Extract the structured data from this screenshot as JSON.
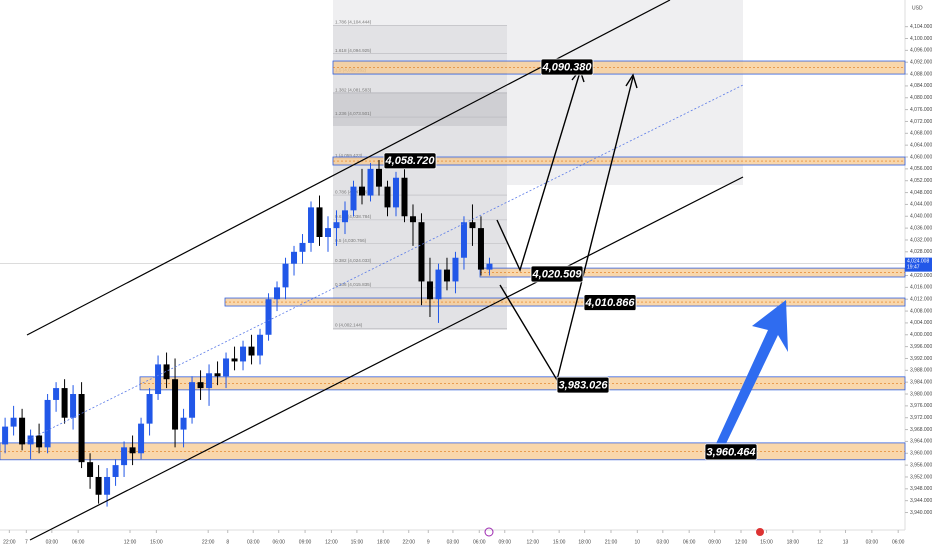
{
  "chart_data": {
    "type": "candlestick",
    "currency": "USD",
    "up_color": "#2157e8",
    "down_color": "#000000",
    "ylim": [
      3934.1,
      4113.0
    ],
    "xlim": [
      -0.6,
      105.9
    ],
    "candles": [
      [
        3963,
        3972,
        3960,
        3969
      ],
      [
        3969,
        3976,
        3966,
        3972
      ],
      [
        3972,
        3975,
        3961,
        3963
      ],
      [
        3963,
        3968,
        3958,
        3966
      ],
      [
        3966,
        3970,
        3960,
        3962
      ],
      [
        3962,
        3980,
        3960,
        3978
      ],
      [
        3978,
        3984,
        3974,
        3982
      ],
      [
        3982,
        3985,
        3970,
        3972
      ],
      [
        3972,
        3983,
        3968,
        3980
      ],
      [
        3980,
        3984,
        3955,
        3957
      ],
      [
        3957,
        3960,
        3948,
        3952
      ],
      [
        3952,
        3956,
        3943,
        3946
      ],
      [
        3946,
        3955,
        3942,
        3952
      ],
      [
        3952,
        3958,
        3949,
        3956
      ],
      [
        3956,
        3964,
        3952,
        3962
      ],
      [
        3962,
        3966,
        3956,
        3960
      ],
      [
        3960,
        3972,
        3958,
        3970
      ],
      [
        3970,
        3982,
        3966,
        3980
      ],
      [
        3980,
        3993,
        3978,
        3990
      ],
      [
        3990,
        3994,
        3982,
        3985
      ],
      [
        3985,
        3992,
        3962,
        3968
      ],
      [
        3968,
        3975,
        3962,
        3972
      ],
      [
        3972,
        3986,
        3970,
        3984
      ],
      [
        3984,
        3988,
        3978,
        3982
      ],
      [
        3982,
        3990,
        3976,
        3987
      ],
      [
        3987,
        3991,
        3983,
        3986
      ],
      [
        3986,
        3994,
        3982,
        3992
      ],
      [
        3992,
        3996,
        3988,
        3991
      ],
      [
        3991,
        3998,
        3988,
        3996
      ],
      [
        3996,
        4000,
        3990,
        3993
      ],
      [
        3993,
        4002,
        3990,
        4000
      ],
      [
        4000,
        4014,
        3998,
        4012
      ],
      [
        4012,
        4018,
        4008,
        4016
      ],
      [
        4016,
        4026,
        4012,
        4024
      ],
      [
        4024,
        4030,
        4020,
        4028
      ],
      [
        4028,
        4034,
        4024,
        4031
      ],
      [
        4031,
        4045,
        4028,
        4043
      ],
      [
        4043,
        4047,
        4030,
        4033
      ],
      [
        4033,
        4040,
        4028,
        4036
      ],
      [
        4036,
        4042,
        4030,
        4038
      ],
      [
        4038,
        4045,
        4034,
        4042
      ],
      [
        4042,
        4052,
        4040,
        4050
      ],
      [
        4050,
        4056,
        4044,
        4047
      ],
      [
        4047,
        4058,
        4045,
        4056
      ],
      [
        4056,
        4059,
        4047,
        4050
      ],
      [
        4050,
        4052,
        4040,
        4043
      ],
      [
        4043,
        4055,
        4040,
        4053
      ],
      [
        4053,
        4056,
        4038,
        4040
      ],
      [
        4040,
        4044,
        4030,
        4038
      ],
      [
        4038,
        4041,
        4010,
        4018
      ],
      [
        4018,
        4026,
        4006,
        4012
      ],
      [
        4012,
        4024,
        4004,
        4022
      ],
      [
        4022,
        4026,
        4015,
        4018
      ],
      [
        4018,
        4028,
        4014,
        4026
      ],
      [
        4026,
        4040,
        4022,
        4038
      ],
      [
        4038,
        4044,
        4030,
        4036
      ],
      [
        4036,
        4040,
        4020,
        4022
      ],
      [
        4022,
        4026,
        4020,
        4024
      ]
    ],
    "yticks": [
      {
        "value": 3940,
        "label": "3,940.000"
      },
      {
        "value": 3944,
        "label": "3,944.000"
      },
      {
        "value": 3948,
        "label": "3,948.000"
      },
      {
        "value": 3952,
        "label": "3,952.000"
      },
      {
        "value": 3956,
        "label": "3,956.000"
      },
      {
        "value": 3960,
        "label": "3,960.000"
      },
      {
        "value": 3964,
        "label": "3,964.000"
      },
      {
        "value": 3968,
        "label": "3,968.000"
      },
      {
        "value": 3972,
        "label": "3,972.000"
      },
      {
        "value": 3976,
        "label": "3,976.000"
      },
      {
        "value": 3980,
        "label": "3,980.000"
      },
      {
        "value": 3984,
        "label": "3,984.000"
      },
      {
        "value": 3988,
        "label": "3,988.000"
      },
      {
        "value": 3992,
        "label": "3,992.000"
      },
      {
        "value": 3996,
        "label": "3,996.000"
      },
      {
        "value": 4000,
        "label": "4,000.000"
      },
      {
        "value": 4004,
        "label": "4,004.000"
      },
      {
        "value": 4008,
        "label": "4,008.000"
      },
      {
        "value": 4012,
        "label": "4,012.000"
      },
      {
        "value": 4016,
        "label": "4,016.000"
      },
      {
        "value": 4020,
        "label": "4,020.000"
      },
      {
        "value": 4028,
        "label": "4,028.000"
      },
      {
        "value": 4032,
        "label": "4,032.000"
      },
      {
        "value": 4036,
        "label": "4,036.000"
      },
      {
        "value": 4040,
        "label": "4,040.000"
      },
      {
        "value": 4044,
        "label": "4,044.000"
      },
      {
        "value": 4048,
        "label": "4,048.000"
      },
      {
        "value": 4052,
        "label": "4,052.000"
      },
      {
        "value": 4056,
        "label": "4,056.000"
      },
      {
        "value": 4060,
        "label": "4,060.000"
      },
      {
        "value": 4064,
        "label": "4,064.000"
      },
      {
        "value": 4068,
        "label": "4,068.000"
      },
      {
        "value": 4072,
        "label": "4,072.000"
      },
      {
        "value": 4076,
        "label": "4,076.000"
      },
      {
        "value": 4080,
        "label": "4,080.000"
      },
      {
        "value": 4084,
        "label": "4,084.000"
      },
      {
        "value": 4088,
        "label": "4,088.000"
      },
      {
        "value": 4092,
        "label": "4,092.000"
      },
      {
        "value": 4096,
        "label": "4,096.000"
      },
      {
        "value": 4100,
        "label": "4,100.000"
      },
      {
        "value": 4104,
        "label": "4,104.000"
      }
    ],
    "xticks": [
      {
        "value": 0.5,
        "label": "22:00"
      },
      {
        "value": 2.5,
        "label": "7"
      },
      {
        "value": 5.5,
        "label": "03:00"
      },
      {
        "value": 8.6,
        "label": "06:00"
      },
      {
        "value": 14.7,
        "label": "12:00"
      },
      {
        "value": 17.8,
        "label": "15:00"
      },
      {
        "value": 23.9,
        "label": "22:00"
      },
      {
        "value": 26.2,
        "label": "8"
      },
      {
        "value": 29.2,
        "label": "03:00"
      },
      {
        "value": 32.2,
        "label": "06:00"
      },
      {
        "value": 35.3,
        "label": "09:00"
      },
      {
        "value": 38.4,
        "label": "12:00"
      },
      {
        "value": 41.4,
        "label": "15:00"
      },
      {
        "value": 44.5,
        "label": "18:00"
      },
      {
        "value": 47.5,
        "label": "22:00"
      },
      {
        "value": 49.8,
        "label": "9"
      },
      {
        "value": 52.7,
        "label": "03:00"
      },
      {
        "value": 55.8,
        "label": "06:00"
      },
      {
        "value": 58.8,
        "label": "09:00"
      },
      {
        "value": 62.1,
        "label": "12:00"
      },
      {
        "value": 65.2,
        "label": "15:00"
      },
      {
        "value": 68.2,
        "label": "18:00"
      },
      {
        "value": 71.3,
        "label": "21:00"
      },
      {
        "value": 74.4,
        "label": "10"
      },
      {
        "value": 77.4,
        "label": "03:00"
      },
      {
        "value": 80.5,
        "label": "06:00"
      },
      {
        "value": 83.5,
        "label": "09:00"
      },
      {
        "value": 86.6,
        "label": "12:00"
      },
      {
        "value": 89.6,
        "label": "15:00"
      },
      {
        "value": 92.7,
        "label": "18:00"
      },
      {
        "value": 95.9,
        "label": "12"
      },
      {
        "value": 98.9,
        "label": "13"
      },
      {
        "value": 102,
        "label": "03:00"
      },
      {
        "value": 105.1,
        "label": "06:00"
      }
    ],
    "fib_levels": [
      {
        "value": 4104.444,
        "label": "1.786 (4,104.444)"
      },
      {
        "value": 4094.925,
        "label": "1.618 (4,094.925)"
      },
      {
        "value": 4088.262,
        "label": "1.5 (4,088.262)"
      },
      {
        "value": 4081.583,
        "label": "1.382 (4,081.583)"
      },
      {
        "value": 4073.501,
        "label": "1.236 (4,073.501)"
      },
      {
        "value": 4059.423,
        "label": "1 (4,059.423)"
      },
      {
        "value": 4047.165,
        "label": "0.786 (4,047.165)"
      },
      {
        "value": 4038.784,
        "label": "0.618 (4,038.784)"
      },
      {
        "value": 4030.766,
        "label": "0.5 (4,030.766)"
      },
      {
        "value": 4024.033,
        "label": "0.382 (4,024.033)"
      },
      {
        "value": 4015.835,
        "label": "0.236 (4,015.835)"
      },
      {
        "value": 4002.144,
        "label": "0 (4,002.144)"
      }
    ],
    "zones": [
      [
        4088.0,
        4092.4
      ],
      [
        4057.3,
        4060.0
      ],
      [
        4019.5,
        4022.5
      ],
      [
        4009.7,
        4012.4
      ],
      [
        3981.4,
        3985.8
      ],
      [
        3957.8,
        3963.5
      ]
    ],
    "price_tags": [
      {
        "value": 4090.38,
        "label": "4,090.380"
      },
      {
        "value": 4058.72,
        "label": "4,058.720"
      },
      {
        "value": 4020.509,
        "label": "4,020.509"
      },
      {
        "value": 4010.866,
        "label": "4,010.866"
      },
      {
        "value": 3983.026,
        "label": "3,983.026"
      },
      {
        "value": 3960.464,
        "label": "3,960.464"
      }
    ],
    "last_price": {
      "value": 4024.008,
      "label": "4,024.008",
      "time": "19:47"
    }
  }
}
